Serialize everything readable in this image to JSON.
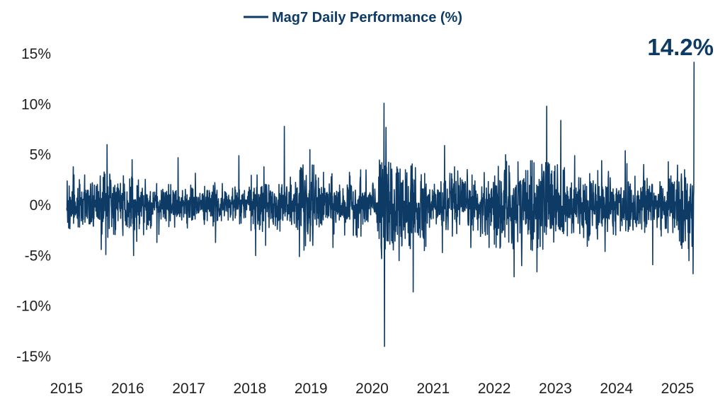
{
  "colors": {
    "series": "#0d3b66",
    "text": "#1f1f1f",
    "background": "#ffffff"
  },
  "chart_data": {
    "type": "line",
    "title": "",
    "xlabel": "",
    "ylabel": "",
    "legend": {
      "placement": "top-center",
      "entries": [
        "Mag7 Daily Performance (%)"
      ]
    },
    "grid": false,
    "x_tick_labels": [
      "2015",
      "2016",
      "2017",
      "2018",
      "2019",
      "2020",
      "2021",
      "2022",
      "2023",
      "2024",
      "2025"
    ],
    "y_tick_labels": [
      "15%",
      "10%",
      "5%",
      "0%",
      "-5%",
      "-10%",
      "-15%"
    ],
    "y_ticks": [
      15,
      10,
      5,
      0,
      -5,
      -10,
      -15
    ],
    "xlim": [
      "2015-01-01",
      "2025-04-15"
    ],
    "ylim": [
      -15,
      15
    ],
    "series": [
      {
        "name": "Mag7 Daily Performance (%)",
        "color": "#0d3b66",
        "extremes": [
          {
            "date": "2015-01-05",
            "value": 2.4
          },
          {
            "date": "2015-02-10",
            "value": 3.8
          },
          {
            "date": "2015-08-24",
            "value": -4.9
          },
          {
            "date": "2015-09-01",
            "value": 6.0
          },
          {
            "date": "2016-02-05",
            "value": -5.0
          },
          {
            "date": "2016-01-28",
            "value": 4.5
          },
          {
            "date": "2016-06-24",
            "value": -3.7
          },
          {
            "date": "2016-10-28",
            "value": 4.7
          },
          {
            "date": "2017-06-09",
            "value": -3.7
          },
          {
            "date": "2017-10-27",
            "value": 4.9
          },
          {
            "date": "2018-02-05",
            "value": -5.0
          },
          {
            "date": "2018-03-26",
            "value": 3.8
          },
          {
            "date": "2018-07-26",
            "value": 7.8
          },
          {
            "date": "2018-10-24",
            "value": -5.1
          },
          {
            "date": "2018-12-26",
            "value": 5.5
          },
          {
            "date": "2019-05-13",
            "value": -4.2
          },
          {
            "date": "2019-10-25",
            "value": 3.5
          },
          {
            "date": "2020-02-27",
            "value": -5.3
          },
          {
            "date": "2020-03-13",
            "value": 10.1
          },
          {
            "date": "2020-03-16",
            "value": -14.0
          },
          {
            "date": "2020-03-24",
            "value": 7.7
          },
          {
            "date": "2020-06-11",
            "value": -5.5
          },
          {
            "date": "2020-09-03",
            "value": -8.6
          },
          {
            "date": "2020-11-09",
            "value": -4.5
          },
          {
            "date": "2021-02-25",
            "value": -4.7
          },
          {
            "date": "2021-03-09",
            "value": 5.9
          },
          {
            "date": "2021-12-01",
            "value": -4.2
          },
          {
            "date": "2022-03-09",
            "value": 5.0
          },
          {
            "date": "2022-04-29",
            "value": -7.1
          },
          {
            "date": "2022-06-13",
            "value": -6.0
          },
          {
            "date": "2022-09-13",
            "value": -6.6
          },
          {
            "date": "2022-11-10",
            "value": 9.8
          },
          {
            "date": "2023-02-02",
            "value": 8.4
          },
          {
            "date": "2023-04-27",
            "value": 4.9
          },
          {
            "date": "2023-10-25",
            "value": -4.6
          },
          {
            "date": "2024-02-22",
            "value": 5.4
          },
          {
            "date": "2024-08-05",
            "value": -5.9
          },
          {
            "date": "2024-11-06",
            "value": 4.3
          },
          {
            "date": "2025-01-27",
            "value": -4.3
          },
          {
            "date": "2025-03-10",
            "value": -5.5
          },
          {
            "date": "2025-04-03",
            "value": -6.8
          },
          {
            "date": "2025-04-09",
            "value": 14.2
          }
        ]
      }
    ],
    "annotations": [
      {
        "label": "14.2%",
        "date": "2025-04-09",
        "value": 14.2
      }
    ]
  }
}
